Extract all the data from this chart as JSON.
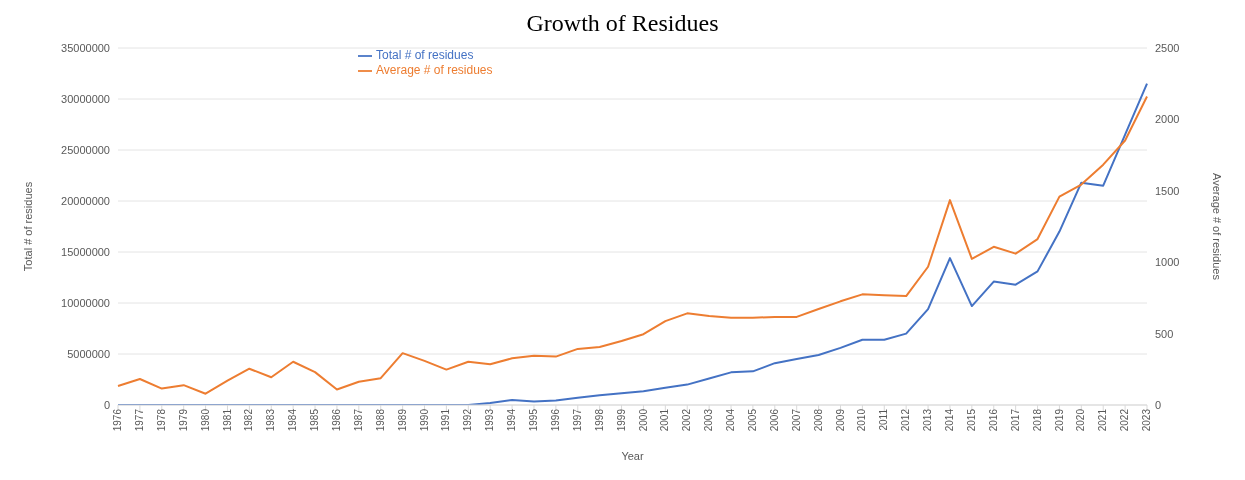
{
  "chart_data": {
    "type": "line",
    "title": "Growth of Residues",
    "xlabel": "Year",
    "ylabel": "Total # of residues",
    "y2label": "Average # of residues",
    "categories": [
      "1976",
      "1977",
      "1978",
      "1979",
      "1980",
      "1981",
      "1982",
      "1983",
      "1984",
      "1985",
      "1986",
      "1987",
      "1988",
      "1989",
      "1990",
      "1991",
      "1992",
      "1993",
      "1994",
      "1995",
      "1996",
      "1997",
      "1998",
      "1999",
      "2000",
      "2001",
      "2002",
      "2003",
      "2004",
      "2005",
      "2006",
      "2007",
      "2008",
      "2009",
      "2010",
      "2011",
      "2012",
      "2013",
      "2014",
      "2015",
      "2016",
      "2017",
      "2018",
      "2019",
      "2020",
      "2021",
      "2022",
      "2023"
    ],
    "series": [
      {
        "name": "Total # of residues",
        "color": "#4472c4",
        "values": [
          0,
          0,
          0,
          0,
          0,
          0,
          0,
          0,
          0,
          0,
          0,
          0,
          0,
          0,
          0,
          0,
          0,
          200000,
          500000,
          350000,
          450000,
          700000,
          950000,
          1150000,
          1350000,
          1700000,
          2000000,
          2600000,
          3200000,
          3300000,
          4100000,
          4500000,
          4900000,
          5600000,
          6400000,
          6400000,
          7000000,
          9400000,
          14400000,
          9700000,
          12100000,
          11800000,
          13100000,
          17000000,
          21800000,
          21500000,
          26500000,
          31500000
        ]
      },
      {
        "name": "Average # of residues",
        "color": "#ed7d31",
        "axis": "y2",
        "values": [
          133,
          182,
          115,
          139,
          79,
          170,
          254,
          194,
          303,
          230,
          109,
          163,
          188,
          363,
          309,
          248,
          303,
          285,
          327,
          345,
          339,
          393,
          406,
          448,
          496,
          587,
          642,
          623,
          611,
          611,
          617,
          617,
          672,
          726,
          775,
          769,
          763,
          968,
          1435,
          1023,
          1108,
          1060,
          1162,
          1459,
          1544,
          1683,
          1852,
          2160
        ]
      }
    ],
    "ylim": [
      0,
      35000000
    ],
    "yticks": [
      0,
      5000000,
      10000000,
      15000000,
      20000000,
      25000000,
      30000000,
      35000000
    ],
    "y2lim": [
      0,
      2500
    ],
    "y2ticks": [
      0,
      500,
      1000,
      1500,
      2000,
      2500
    ],
    "grid": "y",
    "legend": "top left",
    "marker": "none",
    "line_style": "solid"
  }
}
